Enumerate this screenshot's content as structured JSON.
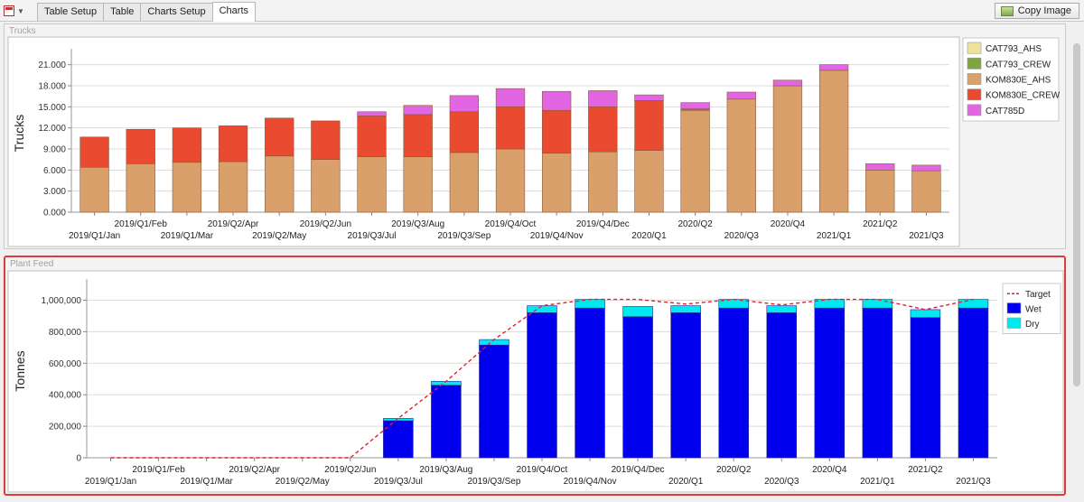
{
  "toolbar": {
    "tabs": [
      {
        "label": "Table Setup"
      },
      {
        "label": "Table"
      },
      {
        "label": "Charts Setup"
      },
      {
        "label": "Charts"
      }
    ],
    "active_tab": 3,
    "copy_label": "Copy Image"
  },
  "chart_data": [
    {
      "type": "bar",
      "stacked": true,
      "title": "Trucks",
      "ylabel": "Trucks",
      "xlabel": "",
      "ylim": [
        0,
        22500
      ],
      "yticks": [
        0,
        3000,
        6000,
        9000,
        12000,
        15000,
        18000,
        21000
      ],
      "ytick_labels": [
        "0.000",
        "3.000",
        "6.000",
        "9.000",
        "12.000",
        "15.000",
        "18.000",
        "21.000"
      ],
      "grid": true,
      "legend": "top-right",
      "categories": [
        "2019/Q1/Jan",
        "2019/Q1/Feb",
        "2019/Q1/Mar",
        "2019/Q2/Apr",
        "2019/Q2/May",
        "2019/Q2/Jun",
        "2019/Q3/Jul",
        "2019/Q3/Aug",
        "2019/Q3/Sep",
        "2019/Q4/Oct",
        "2019/Q4/Nov",
        "2019/Q4/Dec",
        "2020/Q1",
        "2020/Q2",
        "2020/Q3",
        "2020/Q4",
        "2021/Q1",
        "2021/Q2",
        "2021/Q3"
      ],
      "series": [
        {
          "name": "CAT793_AHS",
          "color": "#ede39a",
          "values": [
            0,
            0,
            0,
            0,
            0,
            0,
            0,
            0,
            0,
            0,
            0,
            0,
            0,
            0,
            0,
            0,
            0,
            0,
            0
          ]
        },
        {
          "name": "CAT793_CREW",
          "color": "#7fa63c",
          "values": [
            0,
            0,
            0,
            0,
            0,
            0,
            0,
            0,
            0,
            0,
            0,
            0,
            0,
            0,
            0,
            0,
            0,
            0,
            0
          ]
        },
        {
          "name": "KOM830E_AHS",
          "color": "#d9a06c",
          "values": [
            6400,
            6900,
            7100,
            7200,
            8000,
            7500,
            7900,
            7900,
            8500,
            9000,
            8400,
            8600,
            8800,
            14500,
            16100,
            18000,
            20200,
            6000,
            5900
          ]
        },
        {
          "name": "KOM830E_CREW",
          "color": "#ea4a30",
          "values": [
            4300,
            4900,
            4900,
            5100,
            5400,
            5500,
            5800,
            6000,
            5800,
            6000,
            6100,
            6400,
            7100,
            200,
            0,
            0,
            0,
            0,
            0
          ]
        },
        {
          "name": "CAT785D",
          "color": "#e266e2",
          "values": [
            0,
            0,
            0,
            0,
            0,
            0,
            600,
            1300,
            2300,
            2600,
            2700,
            2300,
            800,
            900,
            1000,
            800,
            800,
            900,
            800
          ]
        }
      ]
    },
    {
      "type": "bar",
      "stacked": true,
      "title": "Plant Feed",
      "ylabel": "Tonnes",
      "xlabel": "",
      "ylim": [
        0,
        1100000
      ],
      "yticks": [
        0,
        200000,
        400000,
        600000,
        800000,
        1000000
      ],
      "ytick_labels": [
        "0",
        "200,000",
        "400,000",
        "600,000",
        "800,000",
        "1,000,000"
      ],
      "grid": true,
      "legend": "top-right",
      "categories": [
        "2019/Q1/Jan",
        "2019/Q1/Feb",
        "2019/Q1/Mar",
        "2019/Q2/Apr",
        "2019/Q2/May",
        "2019/Q2/Jun",
        "2019/Q3/Jul",
        "2019/Q3/Aug",
        "2019/Q3/Sep",
        "2019/Q4/Oct",
        "2019/Q4/Nov",
        "2019/Q4/Dec",
        "2020/Q1",
        "2020/Q2",
        "2020/Q3",
        "2020/Q4",
        "2021/Q1",
        "2021/Q2",
        "2021/Q3"
      ],
      "series": [
        {
          "name": "Wet",
          "color": "#0000ee",
          "values": [
            0,
            0,
            0,
            0,
            0,
            0,
            235000,
            460000,
            715000,
            920000,
            950000,
            895000,
            920000,
            950000,
            920000,
            950000,
            950000,
            890000,
            950000
          ]
        },
        {
          "name": "Dry",
          "color": "#00e8f0",
          "values": [
            0,
            0,
            0,
            0,
            0,
            0,
            15000,
            25000,
            35000,
            45000,
            55000,
            65000,
            45000,
            55000,
            45000,
            55000,
            55000,
            50000,
            55000
          ]
        }
      ],
      "line": {
        "name": "Target",
        "color": "#e5202a",
        "style": "dashed",
        "values": [
          0,
          0,
          0,
          0,
          0,
          0,
          250000,
          485000,
          750000,
          965000,
          1005000,
          1005000,
          975000,
          1005000,
          970000,
          1005000,
          1005000,
          940000,
          1005000
        ]
      }
    }
  ]
}
